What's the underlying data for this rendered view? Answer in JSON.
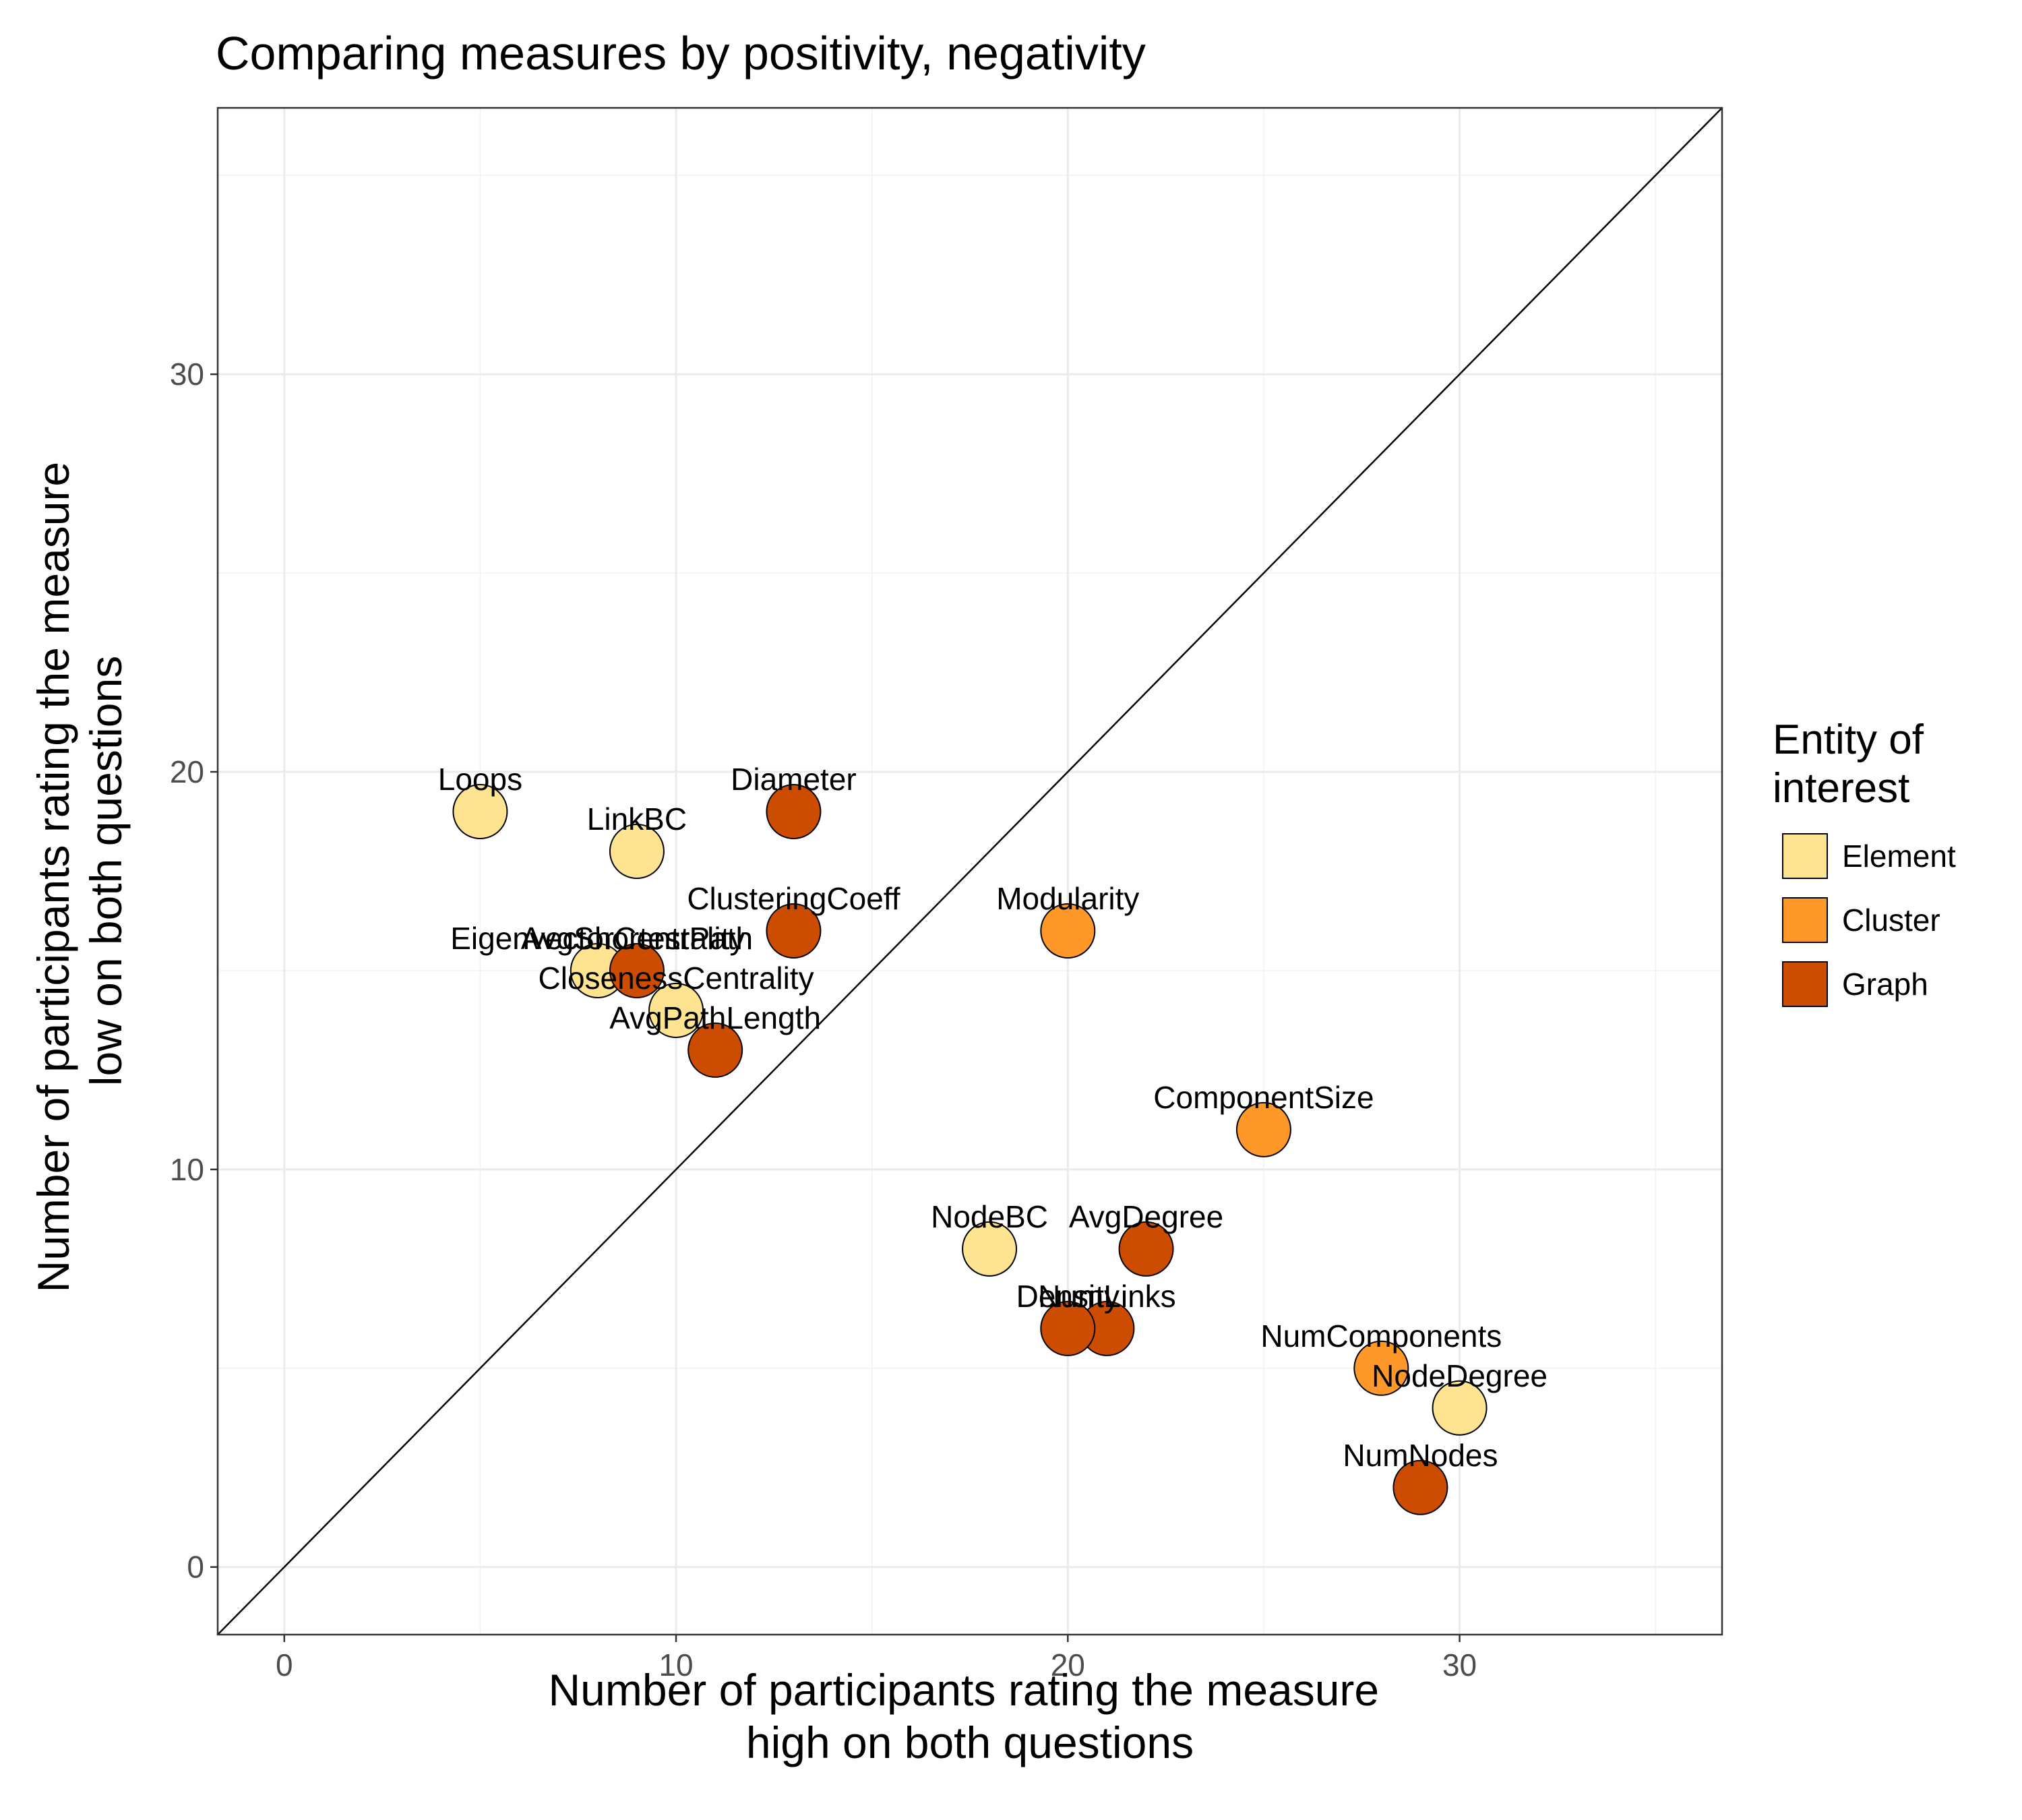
{
  "chart_data": {
    "type": "scatter",
    "title": "Comparing measures by positivity, negativity",
    "xlabel": [
      "Number of participants rating the measure",
      "high on both questions"
    ],
    "ylabel": [
      "Number of participants rating the measure",
      "low on both questions"
    ],
    "xlim": [
      -1.7,
      36.7
    ],
    "ylim": [
      -1.7,
      36.7
    ],
    "x_ticks": [
      0,
      10,
      20,
      30
    ],
    "y_ticks": [
      0,
      10,
      20,
      30
    ],
    "grid": true,
    "reference_line": "y = x",
    "legend": {
      "title": [
        "Entity of",
        "interest"
      ],
      "position": "right",
      "entries": [
        {
          "name": "Element",
          "color": "#FEE391"
        },
        {
          "name": "Cluster",
          "color": "#FE9929"
        },
        {
          "name": "Graph",
          "color": "#CC4C02"
        }
      ]
    },
    "points": [
      {
        "label": "Loops",
        "x": 5,
        "y": 19,
        "group": "Element"
      },
      {
        "label": "LinkBC",
        "x": 9,
        "y": 18,
        "group": "Element"
      },
      {
        "label": "EigenvectorCentrality",
        "x": 8,
        "y": 15,
        "group": "Element"
      },
      {
        "label": "AvgShortestPath",
        "x": 9,
        "y": 15,
        "group": "Graph"
      },
      {
        "label": "ClosenessCentrality",
        "x": 10,
        "y": 14,
        "group": "Element"
      },
      {
        "label": "AvgPathLength",
        "x": 11,
        "y": 13,
        "group": "Graph"
      },
      {
        "label": "Diameter",
        "x": 13,
        "y": 19,
        "group": "Graph"
      },
      {
        "label": "ClusteringCoeff",
        "x": 13,
        "y": 16,
        "group": "Graph"
      },
      {
        "label": "Modularity",
        "x": 20,
        "y": 16,
        "group": "Cluster"
      },
      {
        "label": "ComponentSize",
        "x": 25,
        "y": 11,
        "group": "Cluster"
      },
      {
        "label": "NodeBC",
        "x": 18,
        "y": 8,
        "group": "Element"
      },
      {
        "label": "AvgDegree",
        "x": 22,
        "y": 8,
        "group": "Graph"
      },
      {
        "label": "NumLinks",
        "x": 21,
        "y": 6,
        "group": "Graph"
      },
      {
        "label": "Density",
        "x": 20,
        "y": 6,
        "group": "Graph"
      },
      {
        "label": "NumComponents",
        "x": 28,
        "y": 5,
        "group": "Cluster"
      },
      {
        "label": "NodeDegree",
        "x": 30,
        "y": 4,
        "group": "Element"
      },
      {
        "label": "NumNodes",
        "x": 29,
        "y": 2,
        "group": "Graph"
      }
    ]
  }
}
